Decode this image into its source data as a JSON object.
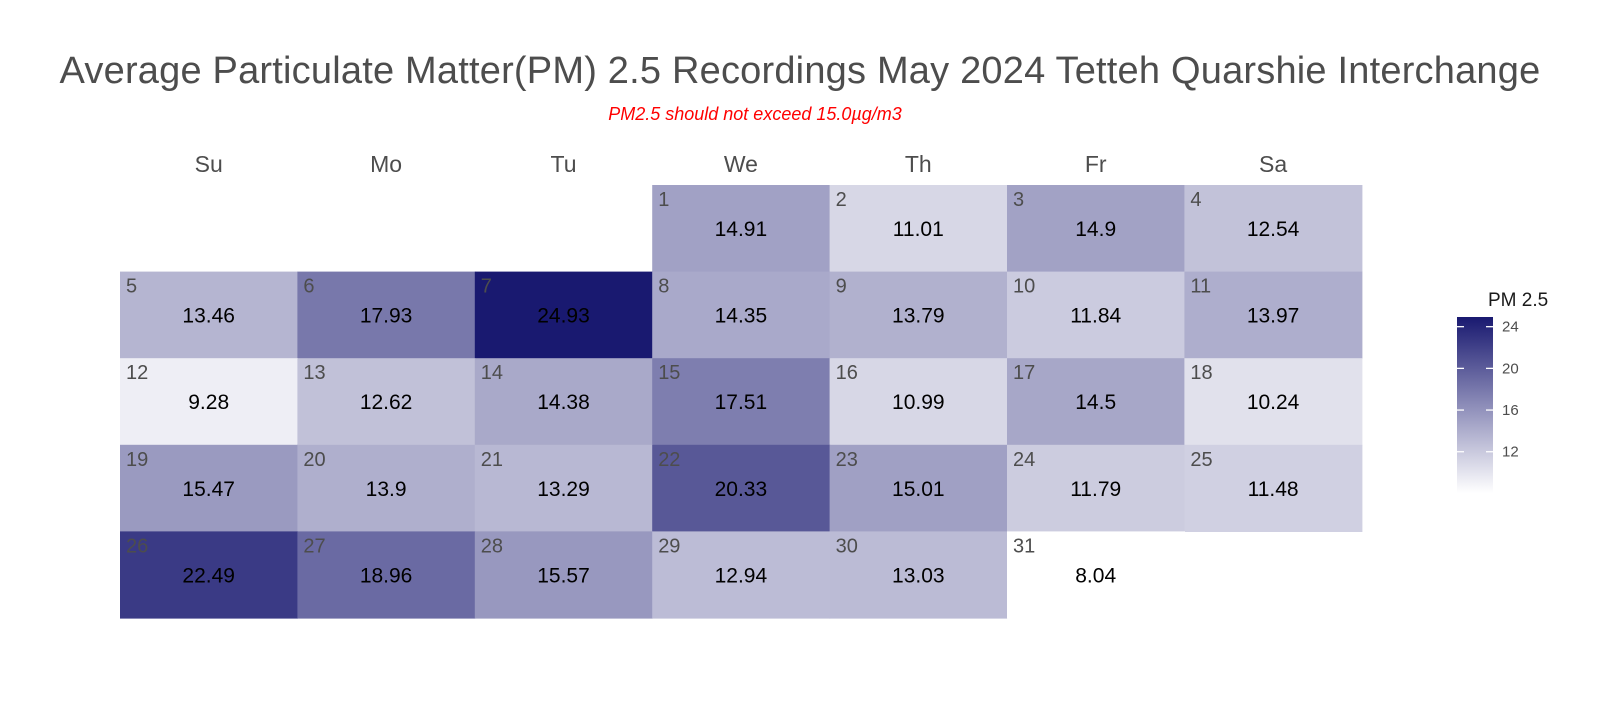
{
  "title": "Average Particulate Matter(PM) 2.5 Recordings May 2024 Tetteh Quarshie Interchange",
  "subtitle": "PM2.5 should not exceed 15.0µg/m3",
  "chart_data": {
    "type": "heatmap",
    "layout": "calendar",
    "month": "May 2024",
    "weekdays": [
      "Su",
      "Mo",
      "Tu",
      "We",
      "Th",
      "Fr",
      "Sa"
    ],
    "first_weekday_index": 3,
    "days": [
      1,
      2,
      3,
      4,
      5,
      6,
      7,
      8,
      9,
      10,
      11,
      12,
      13,
      14,
      15,
      16,
      17,
      18,
      19,
      20,
      21,
      22,
      23,
      24,
      25,
      26,
      27,
      28,
      29,
      30,
      31
    ],
    "values": [
      14.91,
      11.01,
      14.9,
      12.54,
      13.46,
      17.93,
      24.93,
      14.35,
      13.79,
      11.84,
      13.97,
      9.28,
      12.62,
      14.38,
      17.51,
      10.99,
      14.5,
      10.24,
      15.47,
      13.9,
      13.29,
      20.33,
      15.01,
      11.79,
      11.48,
      22.49,
      18.96,
      15.57,
      12.94,
      13.03,
      8.04
    ],
    "value_labels": [
      "14.91",
      "11.01",
      "14.9",
      "12.54",
      "13.46",
      "17.93",
      "24.93",
      "14.35",
      "13.79",
      "11.84",
      "13.97",
      "9.28",
      "12.62",
      "14.38",
      "17.51",
      "10.99",
      "14.5",
      "10.24",
      "15.47",
      "13.9",
      "13.29",
      "20.33",
      "15.01",
      "11.79",
      "11.48",
      "22.49",
      "18.96",
      "15.57",
      "12.94",
      "13.03",
      "8.04"
    ],
    "legend": {
      "title": "PM 2.5",
      "ticks": [
        12,
        16,
        20,
        24
      ],
      "tick_labels": [
        "12",
        "16",
        "20",
        "24"
      ],
      "range": [
        8.04,
        24.93
      ],
      "placement": "right"
    },
    "colors": {
      "low": "#ffffff",
      "high": "#191970"
    }
  }
}
